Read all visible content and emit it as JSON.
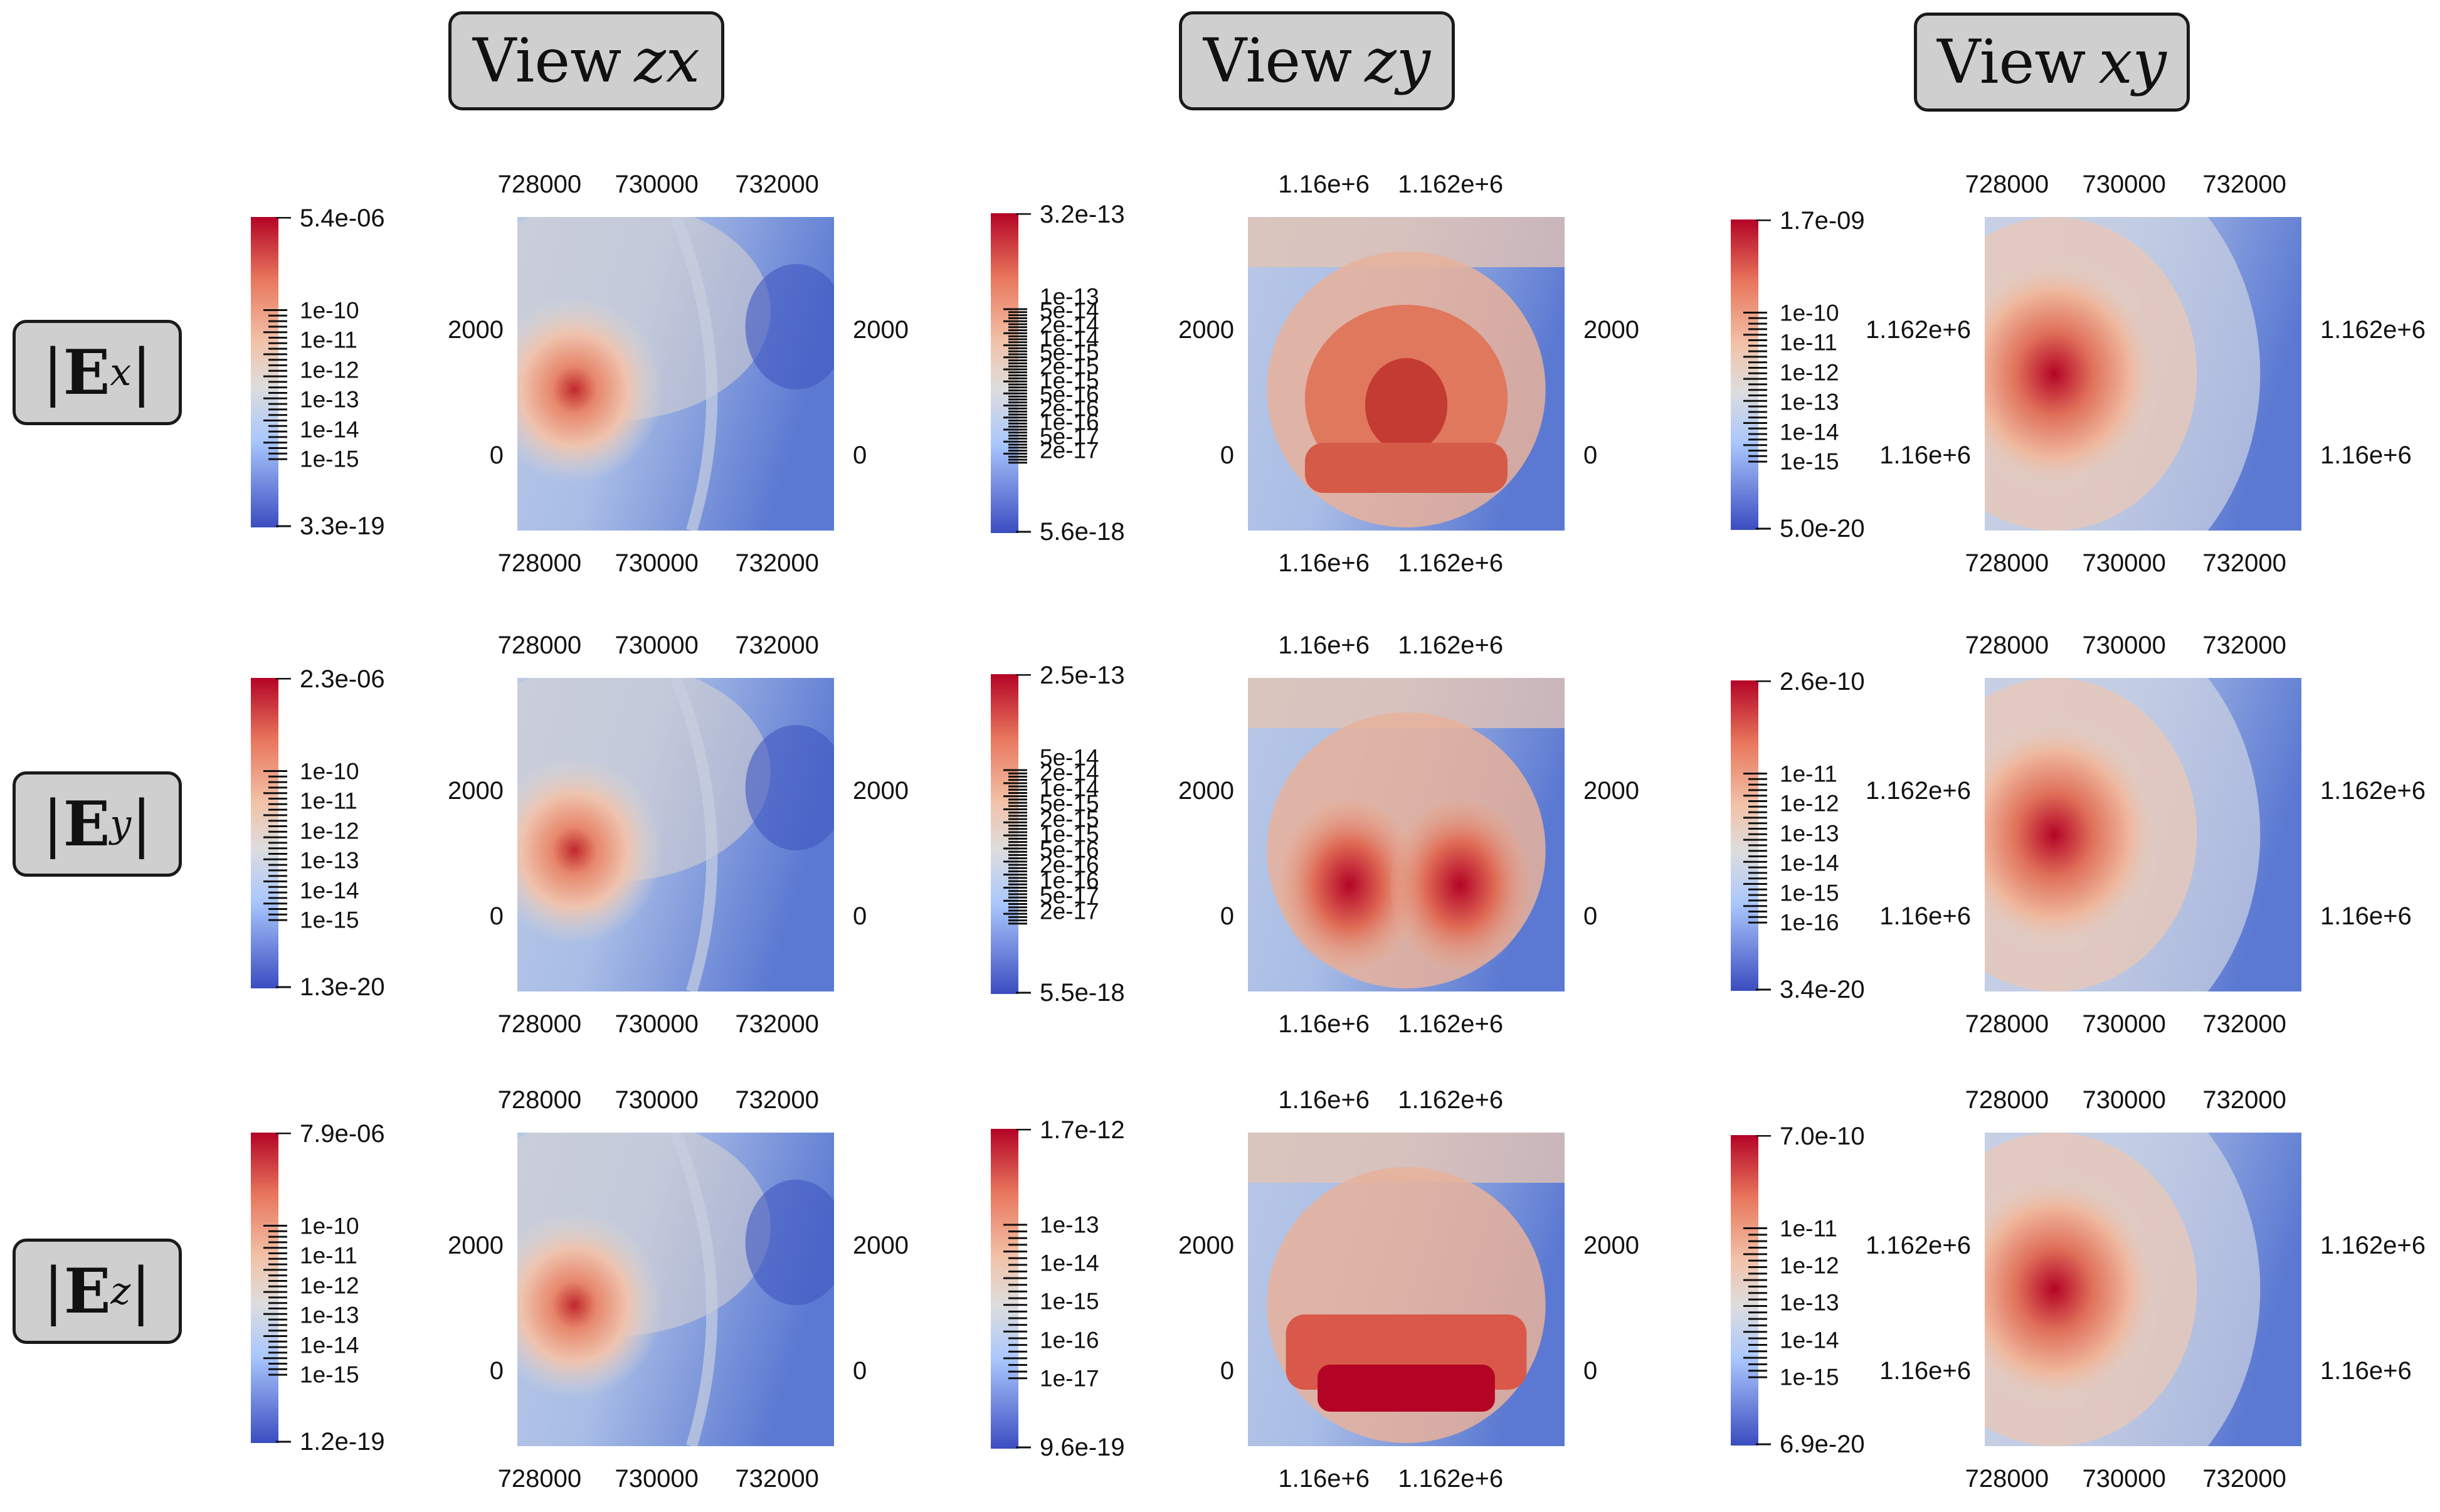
{
  "views": [
    {
      "label": "View",
      "var": "zx"
    },
    {
      "label": "View",
      "var": "zy"
    },
    {
      "label": "View",
      "var": "xy"
    }
  ],
  "rows": [
    {
      "component": "E",
      "sub": "x",
      "panels": [
        {
          "top_ticks": [
            "728000",
            "730000",
            "732000"
          ],
          "bottom_ticks": [
            "728000",
            "730000",
            "732000"
          ],
          "left_ticks": [
            "2000",
            "0"
          ],
          "right_ticks": [
            "2000",
            "0"
          ],
          "colorbar": {
            "max": "5.4e-06",
            "min": "3.3e-19",
            "ticks": [
              "1e-10",
              "1e-11",
              "1e-12",
              "1e-13",
              "1e-14",
              "1e-15"
            ]
          }
        },
        {
          "top_ticks": [
            "1.16e+6",
            "1.162e+6"
          ],
          "bottom_ticks": [
            "1.16e+6",
            "1.162e+6"
          ],
          "left_ticks": [
            "2000",
            "0"
          ],
          "right_ticks": [
            "2000",
            "0"
          ],
          "colorbar": {
            "max": "3.2e-13",
            "min": "5.6e-18",
            "ticks": [
              "1e-13",
              "5e-14",
              "2e-14",
              "1e-14",
              "5e-15",
              "2e-15",
              "1e-15",
              "5e-16",
              "2e-16",
              "1e-16",
              "5e-17",
              "2e-17"
            ]
          }
        },
        {
          "top_ticks": [
            "728000",
            "730000",
            "732000"
          ],
          "bottom_ticks": [
            "728000",
            "730000",
            "732000"
          ],
          "left_ticks": [
            "1.162e+6",
            "1.16e+6"
          ],
          "right_ticks": [
            "1.162e+6",
            "1.16e+6"
          ],
          "colorbar": {
            "max": "1.7e-09",
            "min": "5.0e-20",
            "ticks": [
              "1e-10",
              "1e-11",
              "1e-12",
              "1e-13",
              "1e-14",
              "1e-15"
            ]
          }
        }
      ]
    },
    {
      "component": "E",
      "sub": "y",
      "panels": [
        {
          "top_ticks": [
            "728000",
            "730000",
            "732000"
          ],
          "bottom_ticks": [
            "728000",
            "730000",
            "732000"
          ],
          "left_ticks": [
            "2000",
            "0"
          ],
          "right_ticks": [
            "2000",
            "0"
          ],
          "colorbar": {
            "max": "2.3e-06",
            "min": "1.3e-20",
            "ticks": [
              "1e-10",
              "1e-11",
              "1e-12",
              "1e-13",
              "1e-14",
              "1e-15"
            ]
          }
        },
        {
          "top_ticks": [
            "1.16e+6",
            "1.162e+6"
          ],
          "bottom_ticks": [
            "1.16e+6",
            "1.162e+6"
          ],
          "left_ticks": [
            "2000",
            "0"
          ],
          "right_ticks": [
            "2000",
            "0"
          ],
          "colorbar": {
            "max": "2.5e-13",
            "min": "5.5e-18",
            "ticks": [
              "5e-14",
              "2e-14",
              "1e-14",
              "5e-15",
              "2e-15",
              "1e-15",
              "5e-16",
              "2e-16",
              "1e-16",
              "5e-17",
              "2e-17"
            ]
          }
        },
        {
          "top_ticks": [
            "728000",
            "730000",
            "732000"
          ],
          "bottom_ticks": [
            "728000",
            "730000",
            "732000"
          ],
          "left_ticks": [
            "1.162e+6",
            "1.16e+6"
          ],
          "right_ticks": [
            "1.162e+6",
            "1.16e+6"
          ],
          "colorbar": {
            "max": "2.6e-10",
            "min": "3.4e-20",
            "ticks": [
              "1e-11",
              "1e-12",
              "1e-13",
              "1e-14",
              "1e-15",
              "1e-16"
            ]
          }
        }
      ]
    },
    {
      "component": "E",
      "sub": "z",
      "panels": [
        {
          "top_ticks": [
            "728000",
            "730000",
            "732000"
          ],
          "bottom_ticks": [
            "728000",
            "730000",
            "732000"
          ],
          "left_ticks": [
            "2000",
            "0"
          ],
          "right_ticks": [
            "2000",
            "0"
          ],
          "colorbar": {
            "max": "7.9e-06",
            "min": "1.2e-19",
            "ticks": [
              "1e-10",
              "1e-11",
              "1e-12",
              "1e-13",
              "1e-14",
              "1e-15"
            ]
          }
        },
        {
          "top_ticks": [
            "1.16e+6",
            "1.162e+6"
          ],
          "bottom_ticks": [
            "1.16e+6",
            "1.162e+6"
          ],
          "left_ticks": [
            "2000",
            "0"
          ],
          "right_ticks": [
            "2000",
            "0"
          ],
          "colorbar": {
            "max": "1.7e-12",
            "min": "9.6e-19",
            "ticks": [
              "1e-13",
              "1e-14",
              "1e-15",
              "1e-16",
              "1e-17"
            ]
          }
        },
        {
          "top_ticks": [
            "728000",
            "730000",
            "732000"
          ],
          "bottom_ticks": [
            "728000",
            "730000",
            "732000"
          ],
          "left_ticks": [
            "1.162e+6",
            "1.16e+6"
          ],
          "right_ticks": [
            "1.162e+6",
            "1.16e+6"
          ],
          "colorbar": {
            "max": "7.0e-10",
            "min": "6.9e-20",
            "ticks": [
              "1e-11",
              "1e-12",
              "1e-13",
              "1e-14",
              "1e-15"
            ]
          }
        }
      ]
    }
  ],
  "colors": {
    "high": "#b40426",
    "mid": "#dddddd",
    "low": "#3b4cc0"
  }
}
